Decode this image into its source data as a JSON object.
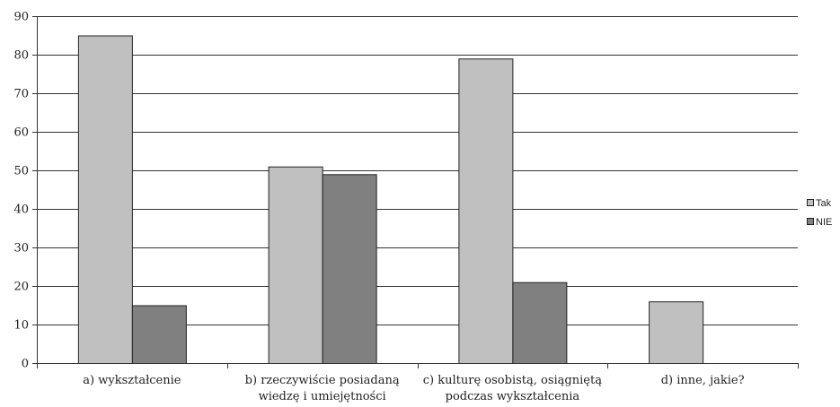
{
  "chart_data": {
    "type": "bar",
    "categories": [
      [
        "a) wykształcenie"
      ],
      [
        "b) rzeczywiście posiadaną",
        "wiedzę i umiejętności"
      ],
      [
        "c) kulturę osobistą, osiągniętą",
        "podczas wykształcenia"
      ],
      [
        "d) inne, jakie?"
      ]
    ],
    "series": [
      {
        "name": "Tak",
        "values": [
          85,
          51,
          79,
          16
        ],
        "color": "#c0c0c0"
      },
      {
        "name": "NIE",
        "values": [
          15,
          49,
          21,
          null
        ],
        "color": "#808080"
      }
    ],
    "ylim": [
      0,
      90
    ],
    "yticks": [
      0,
      10,
      20,
      30,
      40,
      50,
      60,
      70,
      80,
      90
    ],
    "grid": true,
    "legend_position": "right",
    "title": "",
    "xlabel": "",
    "ylabel": ""
  }
}
